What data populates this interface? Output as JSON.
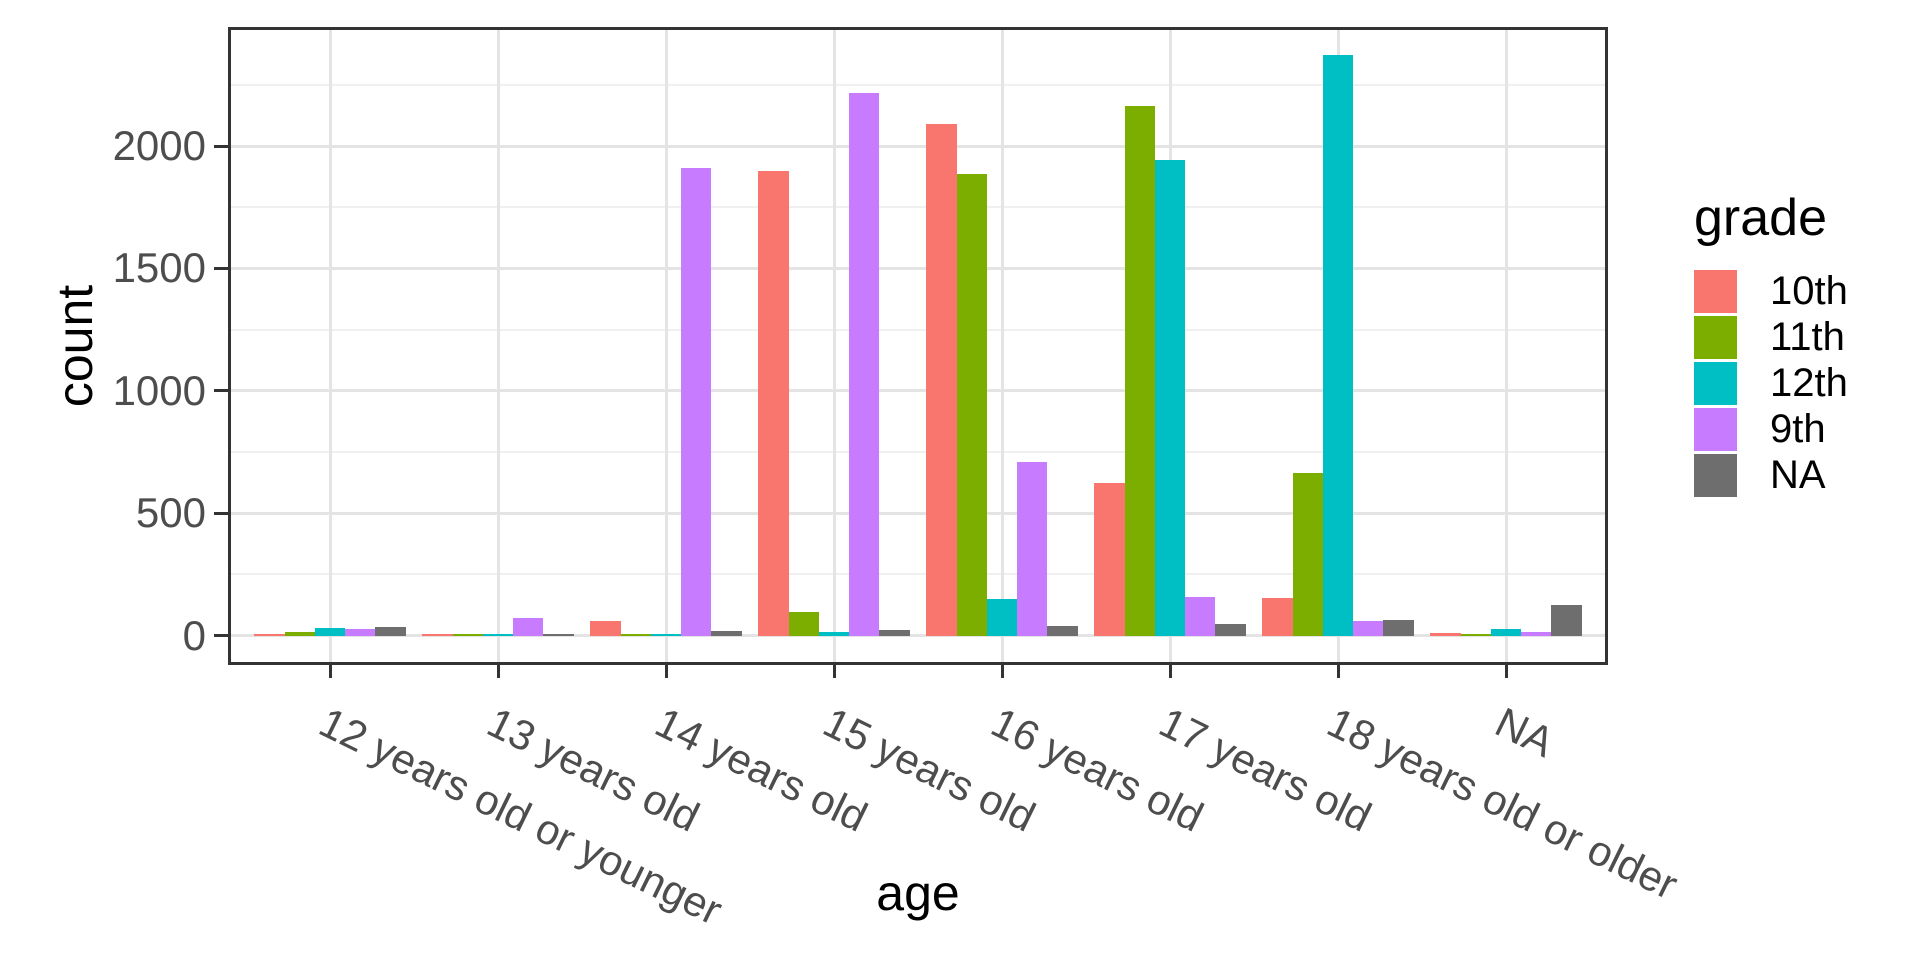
{
  "chart_data": {
    "type": "bar",
    "bar_mode": "dodge",
    "title": "",
    "xlabel": "age",
    "ylabel": "count",
    "legend_title": "grade",
    "legend_position": "right",
    "grid": true,
    "x_tick_angle_deg": 26,
    "categories": [
      "12 years old or younger",
      "13 years old",
      "14 years old",
      "15 years old",
      "16 years old",
      "17 years old",
      "18 years old or older",
      "NA"
    ],
    "series": [
      {
        "name": "10th",
        "color": "#F8766D",
        "values": [
          5,
          2,
          60,
          1900,
          2090,
          625,
          155,
          13
        ]
      },
      {
        "name": "11th",
        "color": "#7CAE00",
        "values": [
          16,
          1,
          7,
          97,
          1885,
          2165,
          663,
          4
        ]
      },
      {
        "name": "12th",
        "color": "#00BFC4",
        "values": [
          31,
          1,
          3,
          15,
          150,
          1943,
          2370,
          26
        ]
      },
      {
        "name": "9th",
        "color": "#C77CFF",
        "values": [
          26,
          72,
          1912,
          2216,
          708,
          159,
          60,
          14
        ]
      },
      {
        "name": "NA",
        "color": "#6E6E6E",
        "values": [
          36,
          5,
          21,
          23,
          40,
          49,
          64,
          125
        ]
      }
    ],
    "y_major_ticks": [
      0,
      500,
      1000,
      1500,
      2000
    ],
    "y_minor_ticks": [
      250,
      750,
      1250,
      1750,
      2250
    ],
    "ylim": [
      0,
      2478
    ]
  },
  "colors": {
    "grid_major": "#E4E4E4",
    "grid_minor": "#F0F0F0",
    "panel_border": "#333333",
    "tick_mark": "#333333",
    "tick_text": "#4D4D4D",
    "title_text": "#000000",
    "background": "#FFFFFF"
  }
}
